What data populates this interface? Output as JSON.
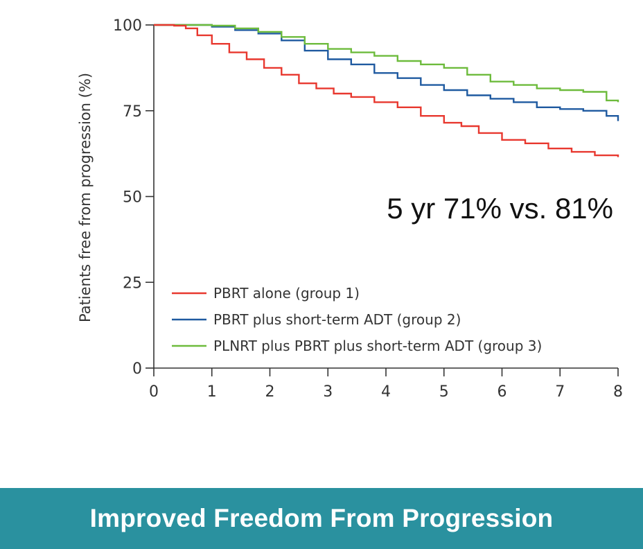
{
  "banner": {
    "text": "Improved Freedom From Progression",
    "color": "#2a919f"
  },
  "chart_data": {
    "type": "line",
    "title": "",
    "xlabel": "",
    "ylabel": "Patients free from progression  (%)",
    "xlim": [
      0,
      8
    ],
    "ylim": [
      0,
      100
    ],
    "x_ticks": [
      "0",
      "1",
      "2",
      "3",
      "4",
      "5",
      "6",
      "7",
      "8"
    ],
    "y_ticks": [
      "0",
      "25",
      "50",
      "75",
      "100"
    ],
    "grid": false,
    "legend_position": "bottom-left",
    "annotation": "5 yr 71% vs. 81%",
    "series": [
      {
        "name": "PBRT alone (group 1)",
        "color": "#e8382f",
        "points": [
          [
            0,
            100
          ],
          [
            0.35,
            99.8
          ],
          [
            0.55,
            99
          ],
          [
            0.75,
            97
          ],
          [
            1.0,
            94.5
          ],
          [
            1.3,
            92
          ],
          [
            1.6,
            90
          ],
          [
            1.9,
            87.5
          ],
          [
            2.2,
            85.5
          ],
          [
            2.5,
            83
          ],
          [
            2.8,
            81.5
          ],
          [
            3.1,
            80
          ],
          [
            3.4,
            79
          ],
          [
            3.8,
            77.5
          ],
          [
            4.2,
            76
          ],
          [
            4.6,
            73.5
          ],
          [
            5.0,
            71.5
          ],
          [
            5.3,
            70.5
          ],
          [
            5.6,
            68.5
          ],
          [
            6.0,
            66.5
          ],
          [
            6.4,
            65.5
          ],
          [
            6.8,
            64
          ],
          [
            7.2,
            63
          ],
          [
            7.6,
            62
          ],
          [
            8.0,
            61.5
          ]
        ]
      },
      {
        "name": "PBRT plus short-term ADT (group 2)",
        "color": "#1f5aa0",
        "points": [
          [
            0,
            100
          ],
          [
            0.5,
            100
          ],
          [
            1.0,
            99.5
          ],
          [
            1.4,
            98.5
          ],
          [
            1.8,
            97.5
          ],
          [
            2.2,
            95.5
          ],
          [
            2.6,
            92.5
          ],
          [
            3.0,
            90
          ],
          [
            3.4,
            88.5
          ],
          [
            3.8,
            86
          ],
          [
            4.2,
            84.5
          ],
          [
            4.6,
            82.5
          ],
          [
            5.0,
            81
          ],
          [
            5.4,
            79.5
          ],
          [
            5.8,
            78.5
          ],
          [
            6.2,
            77.5
          ],
          [
            6.6,
            76
          ],
          [
            7.0,
            75.5
          ],
          [
            7.4,
            75
          ],
          [
            7.8,
            73.5
          ],
          [
            8.0,
            72
          ]
        ]
      },
      {
        "name": "PLNRT plus PBRT plus short-term ADT (group 3)",
        "color": "#6dbb3c",
        "points": [
          [
            0,
            100
          ],
          [
            0.5,
            100
          ],
          [
            1.0,
            99.8
          ],
          [
            1.4,
            99
          ],
          [
            1.8,
            98
          ],
          [
            2.2,
            96.5
          ],
          [
            2.6,
            94.5
          ],
          [
            3.0,
            93
          ],
          [
            3.4,
            92
          ],
          [
            3.8,
            91
          ],
          [
            4.2,
            89.5
          ],
          [
            4.6,
            88.5
          ],
          [
            5.0,
            87.5
          ],
          [
            5.4,
            85.5
          ],
          [
            5.8,
            83.5
          ],
          [
            6.2,
            82.5
          ],
          [
            6.6,
            81.5
          ],
          [
            7.0,
            81
          ],
          [
            7.4,
            80.5
          ],
          [
            7.8,
            78
          ],
          [
            8.0,
            77.5
          ]
        ]
      }
    ]
  }
}
